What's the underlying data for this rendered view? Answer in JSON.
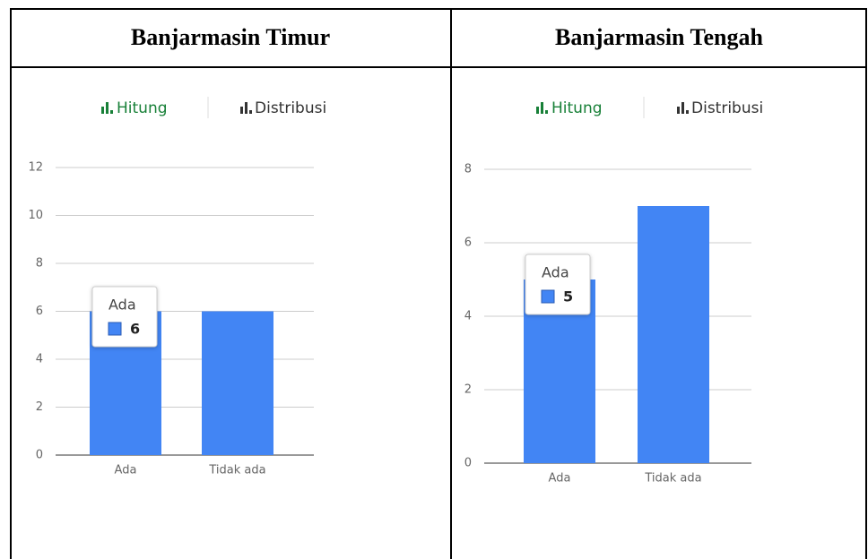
{
  "table": {
    "headers": [
      "Banjarmasin Timur",
      "Banjarmasin Tengah"
    ]
  },
  "chart_data": [
    {
      "type": "bar",
      "tabs": [
        "Hitung",
        "Distribusi"
      ],
      "categories": [
        "Ada",
        "Tidak ada"
      ],
      "values": [
        6,
        6
      ],
      "color": "#4285f4",
      "ylim": [
        0,
        12
      ],
      "yticks": [
        0,
        2,
        4,
        6,
        8,
        10,
        12
      ],
      "grid": true
    },
    {
      "type": "bar",
      "tabs": [
        "Hitung",
        "Distribusi"
      ],
      "categories": [
        "Ada",
        "Tidak ada"
      ],
      "values": [
        5,
        7
      ],
      "color": "#4285f4",
      "ylim": [
        0,
        8
      ],
      "yticks": [
        0,
        2,
        4,
        6,
        8
      ],
      "grid": true
    }
  ]
}
